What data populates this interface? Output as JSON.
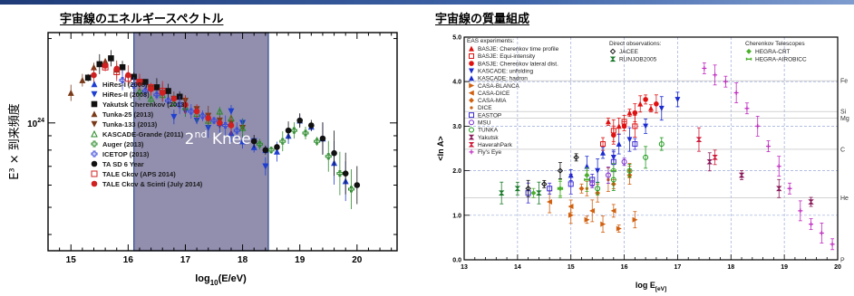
{
  "colors": {
    "band_fill": "#7e7aa0",
    "band_edge": "#2e4f8f",
    "grid": "#9aa8d8",
    "header_bar": "#2c4a8a"
  },
  "chart_data": [
    {
      "type": "scatter",
      "title": "宇宙線のエネルギースペクトル",
      "xlabel_main": "log",
      "xlabel_sub": "10",
      "xlabel_rest": "(E/eV)",
      "ylabel": "E³ × 到来頻度",
      "xlim": [
        14.6,
        20.7
      ],
      "yscale": "log",
      "ylim": [
        0.35,
        2.1
      ],
      "x_ticks": [
        15,
        16,
        17,
        18,
        19,
        20
      ],
      "y_ticks": [
        {
          "value": 1.0,
          "label": "10",
          "sup": "24"
        }
      ],
      "band": {
        "x_from": 16.1,
        "x_to": 18.45,
        "label": "2",
        "label_sup": "nd",
        "label_rest": " Knee"
      },
      "legend_position": "center",
      "series": [
        {
          "name": "HiRes-I (2008)",
          "marker": "triangle-up",
          "color": "#1f3fd0",
          "x": [
            17.6,
            17.8,
            18.0,
            18.2,
            18.4,
            18.6,
            18.8,
            19.0,
            19.2,
            19.4,
            19.6,
            19.8
          ],
          "y": [
            1.0,
            0.92,
            0.86,
            0.82,
            0.8,
            0.79,
            0.9,
            1.02,
            0.97,
            0.88,
            0.72,
            0.62
          ]
        },
        {
          "name": "HiRes-II (2008)",
          "marker": "triangle-down",
          "color": "#1f3fd0",
          "x": [
            16.8,
            17.0,
            17.2,
            17.4,
            17.6,
            17.8,
            18.0,
            18.2,
            18.4
          ],
          "y": [
            1.05,
            1.1,
            1.02,
            0.96,
            0.98,
            1.1,
            1.0,
            0.86,
            0.7
          ]
        },
        {
          "name": "Yakutsk Cherenkov (2013)",
          "marker": "square",
          "color": "#111111",
          "x": [
            15.3,
            15.5,
            15.7,
            15.9,
            16.1,
            16.3,
            16.5,
            16.7,
            16.9
          ],
          "y": [
            1.45,
            1.62,
            1.7,
            1.58,
            1.46,
            1.4,
            1.34,
            1.3,
            1.24
          ]
        },
        {
          "name": "Tunka-25 (2013)",
          "marker": "triangle-up",
          "color": "#7a3a1a",
          "x": [
            15.0,
            15.2,
            15.4,
            15.6,
            15.8
          ],
          "y": [
            1.28,
            1.42,
            1.58,
            1.66,
            1.55
          ]
        },
        {
          "name": "Tunka-133 (2013)",
          "marker": "triangle-down",
          "color": "#7a3a1a",
          "x": [
            16.2,
            16.4,
            16.6,
            16.8,
            17.0,
            17.2,
            17.4,
            17.6,
            17.8,
            18.0
          ],
          "y": [
            1.38,
            1.33,
            1.28,
            1.22,
            1.2,
            1.12,
            1.06,
            1.02,
            1.0,
            0.96
          ]
        },
        {
          "name": "KASCADE-Grande (2011)",
          "marker": "triangle-open",
          "color": "#2a8a2a",
          "x": [
            16.2,
            16.4,
            16.6,
            16.8,
            17.0,
            17.2,
            17.4,
            17.6,
            17.8,
            18.0
          ],
          "y": [
            1.3,
            1.22,
            1.26,
            1.18,
            1.14,
            1.08,
            1.02,
            1.1,
            1.04,
            0.96
          ]
        },
        {
          "name": "Auger (2013)",
          "marker": "cross-open",
          "color": "#2a8a2a",
          "x": [
            18.3,
            18.5,
            18.7,
            18.9,
            19.1,
            19.3,
            19.5,
            19.7,
            19.9
          ],
          "y": [
            0.84,
            0.8,
            0.86,
            0.94,
            0.92,
            0.86,
            0.76,
            0.66,
            0.58
          ]
        },
        {
          "name": "ICETOP (2013)",
          "marker": "cross-open",
          "color": "#3a4ad8",
          "x": [
            15.9,
            16.1,
            16.3,
            16.5,
            16.7,
            16.9,
            17.1,
            17.3,
            17.5,
            17.7,
            17.9
          ],
          "y": [
            1.42,
            1.36,
            1.3,
            1.26,
            1.2,
            1.16,
            1.1,
            1.06,
            1.02,
            0.98,
            0.94
          ]
        },
        {
          "name": "TA SD 6 Year",
          "marker": "circle",
          "color": "#111111",
          "x": [
            18.2,
            18.4,
            18.6,
            18.8,
            19.0,
            19.2,
            19.4,
            19.6,
            19.8,
            20.0
          ],
          "y": [
            0.86,
            0.8,
            0.82,
            0.94,
            1.02,
            0.98,
            0.88,
            0.78,
            0.66,
            0.6
          ]
        },
        {
          "name": "TALE Ckov (APS 2014)",
          "marker": "square-open",
          "color": "#d02020",
          "x": [
            15.6,
            15.8,
            16.0,
            16.2,
            16.4,
            16.6
          ],
          "y": [
            1.58,
            1.52,
            1.44,
            1.4,
            1.34,
            1.3
          ]
        },
        {
          "name": "TALE Ckov & Scinti (July 2014)",
          "marker": "circle",
          "color": "#d02020",
          "x": [
            15.4,
            15.6,
            15.8,
            16.0,
            16.2,
            16.4,
            16.6,
            16.8,
            17.0,
            17.2,
            17.4,
            17.6,
            17.8
          ],
          "y": [
            1.48,
            1.6,
            1.56,
            1.48,
            1.4,
            1.32,
            1.28,
            1.22,
            1.16,
            1.1,
            1.04,
            1.0,
            0.98
          ]
        }
      ]
    },
    {
      "type": "scatter",
      "title": "宇宙線の質量組成",
      "xlabel_main": "log E",
      "xlabel_sub": "[eV]",
      "ylabel": "<ln A>",
      "xlim": [
        13,
        20
      ],
      "ylim": [
        0,
        5
      ],
      "x_ticks": [
        13,
        14,
        15,
        16,
        17,
        18,
        19,
        20
      ],
      "y_ticks": [
        0.0,
        1.0,
        2.0,
        3.0,
        4.0,
        5.0
      ],
      "element_lines": [
        {
          "label": "Fe",
          "value": 4.02
        },
        {
          "label": "Si",
          "value": 3.33
        },
        {
          "label": "Mg",
          "value": 3.18
        },
        {
          "label": "C",
          "value": 2.48
        },
        {
          "label": "He",
          "value": 1.39
        },
        {
          "label": "P",
          "value": 0.0
        }
      ],
      "legend_heads": [
        "EAS experiments:",
        "Direct observations:",
        "Cherenkov Telescopes"
      ],
      "series": [
        {
          "name": "BASJE: Cherenkov time profile",
          "group": "EAS experiments:",
          "marker": "triangle-up",
          "color": "#e01010",
          "x": [
            15.7,
            15.9,
            16.1,
            16.3,
            16.5
          ],
          "y": [
            3.1,
            3.0,
            3.3,
            3.5,
            3.4
          ]
        },
        {
          "name": "BASJE: Equi-intensity",
          "group": "EAS experiments:",
          "marker": "square-open",
          "color": "#e01010",
          "x": [
            15.6,
            15.8,
            16.0,
            16.2
          ],
          "y": [
            2.6,
            2.9,
            3.1,
            3.0
          ]
        },
        {
          "name": "BASJE: Cherenkov lateral dist.",
          "group": "EAS experiments:",
          "marker": "circle",
          "color": "#e01010",
          "x": [
            15.8,
            16.0,
            16.2,
            16.4,
            16.6
          ],
          "y": [
            2.8,
            3.0,
            3.3,
            3.6,
            3.5
          ]
        },
        {
          "name": "KASCADE: unfolding",
          "group": "EAS experiments:",
          "marker": "triangle-down",
          "color": "#1a2ad0",
          "x": [
            15.5,
            15.8,
            16.1,
            16.4,
            16.7,
            17.0
          ],
          "y": [
            2.0,
            2.3,
            2.7,
            3.0,
            3.4,
            3.6
          ]
        },
        {
          "name": "KASCADE: hadron",
          "group": "EAS experiments:",
          "marker": "triangle-up",
          "color": "#1a2ad0",
          "x": [
            15.0,
            15.3,
            15.6,
            15.9
          ],
          "y": [
            1.9,
            2.1,
            2.4,
            2.6
          ]
        },
        {
          "name": "CASA-BLANCA",
          "group": "EAS experiments:",
          "marker": "triangle-right",
          "color": "#d06010",
          "x": [
            15.0,
            15.3,
            15.6,
            15.9,
            16.2
          ],
          "y": [
            1.0,
            0.9,
            0.8,
            0.7,
            0.9
          ]
        },
        {
          "name": "CASA-DICE",
          "group": "EAS experiments:",
          "marker": "triangle-left",
          "color": "#d06010",
          "x": [
            14.6,
            15.0,
            15.4,
            15.8
          ],
          "y": [
            1.3,
            1.2,
            1.1,
            1.1
          ]
        },
        {
          "name": "CASA-MIA",
          "group": "EAS experiments:",
          "marker": "diamond",
          "color": "#d06010",
          "x": [
            15.2,
            15.5,
            15.8,
            16.1
          ],
          "y": [
            1.6,
            1.5,
            1.7,
            1.9
          ]
        },
        {
          "name": "DICE",
          "group": "EAS experiments:",
          "marker": "dot",
          "color": "#d06010",
          "x": [
            15.3,
            15.7,
            16.1
          ],
          "y": [
            1.6,
            1.8,
            2.0
          ]
        },
        {
          "name": "EASTOP",
          "group": "EAS experiments:",
          "marker": "square-open",
          "color": "#3a2ad0",
          "x": [
            14.2,
            14.6,
            15.0,
            15.4,
            15.8,
            16.2
          ],
          "y": [
            1.5,
            1.6,
            1.7,
            1.8,
            2.2,
            2.6
          ]
        },
        {
          "name": "MSU",
          "group": "EAS experiments:",
          "marker": "circle-open",
          "color": "#7a2ad0",
          "x": [
            15.4,
            15.7,
            16.0
          ],
          "y": [
            1.7,
            1.9,
            2.2
          ]
        },
        {
          "name": "TUNKA",
          "group": "EAS experiments:",
          "marker": "circle-open",
          "color": "#1a9a1a",
          "x": [
            15.5,
            15.8,
            16.1,
            16.4,
            16.7
          ],
          "y": [
            1.6,
            1.8,
            2.0,
            2.3,
            2.6
          ]
        },
        {
          "name": "Yakutsk",
          "group": "EAS experiments:",
          "marker": "bowtie",
          "color": "#8a1a5a",
          "x": [
            17.6,
            18.2,
            18.9,
            19.5
          ],
          "y": [
            2.2,
            1.9,
            1.6,
            1.3
          ]
        },
        {
          "name": "HaverahPark",
          "group": "EAS experiments:",
          "marker": "hourglass",
          "color": "#d01a3a",
          "x": [
            17.4,
            17.7
          ],
          "y": [
            2.7,
            2.3
          ]
        },
        {
          "name": "Fly's Eye",
          "group": "EAS experiments:",
          "marker": "plus",
          "color": "#c02ac0",
          "x": [
            17.5,
            17.7,
            17.9,
            18.1,
            18.3,
            18.5,
            18.7,
            18.9,
            19.1,
            19.3,
            19.5,
            19.7,
            19.9
          ],
          "y": [
            4.3,
            4.15,
            4.0,
            3.75,
            3.4,
            3.0,
            2.55,
            2.1,
            1.6,
            1.1,
            0.8,
            0.6,
            0.35
          ]
        },
        {
          "name": "JACEE",
          "group": "Direct observations:",
          "marker": "diamond-open",
          "color": "#111111",
          "x": [
            14.2,
            14.5,
            14.8,
            15.1
          ],
          "y": [
            1.6,
            1.7,
            2.0,
            2.3
          ]
        },
        {
          "name": "RUNJOB2005",
          "group": "Direct observations:",
          "marker": "bowtie",
          "color": "#1a7a2a",
          "x": [
            13.7,
            14.0,
            14.4
          ],
          "y": [
            1.5,
            1.6,
            1.5
          ]
        },
        {
          "name": "HEGRA-CRT",
          "group": "Cherenkov Telescopes",
          "marker": "diamond",
          "color": "#4ab02a",
          "x": [
            14.3,
            14.8,
            15.3
          ],
          "y": [
            1.5,
            1.6,
            1.9
          ]
        },
        {
          "name": "HEGRA-AIROBICC",
          "group": "Cherenkov Telescopes",
          "marker": "dash",
          "color": "#4ab02a",
          "x": [
            14.8,
            15.3,
            15.8
          ],
          "y": [
            1.6,
            1.8,
            2.0
          ]
        }
      ]
    }
  ]
}
